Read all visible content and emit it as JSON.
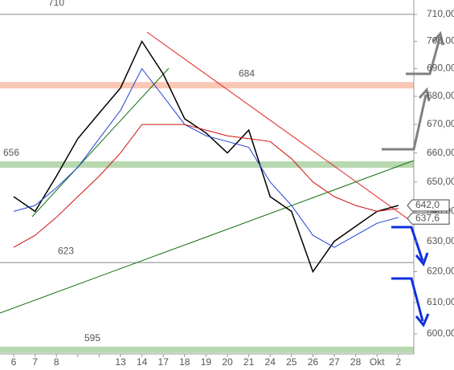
{
  "chart_data": {
    "type": "line",
    "categories": [
      "6",
      "7",
      "8",
      null,
      null,
      "13",
      "14",
      "17",
      "18",
      "19",
      "20",
      "21",
      "24",
      "25",
      "26",
      "27",
      "28",
      "Okt",
      "2"
    ],
    "series": [
      {
        "color": "#000000",
        "values": [
          645,
          640,
          652,
          665,
          674,
          683,
          700,
          688,
          672,
          667,
          660,
          668,
          645,
          640,
          620,
          630,
          635,
          640,
          642
        ]
      },
      {
        "color": "#1f3fd6",
        "values": [
          640,
          642,
          648,
          655,
          665,
          675,
          690,
          680,
          670,
          666,
          664,
          662,
          650,
          642,
          632,
          628,
          632,
          636,
          638
        ]
      },
      {
        "color": "#d01010",
        "values": [
          628,
          632,
          638,
          645,
          652,
          660,
          670,
          670,
          670,
          668,
          666,
          665,
          664,
          658,
          650,
          645,
          642,
          640,
          641
        ]
      }
    ],
    "log_scale": true,
    "ylim": [
      592.7,
      715.4
    ],
    "yticks": [
      {
        "value": 600,
        "label": "600,00"
      },
      {
        "value": 610,
        "label": "610,00"
      },
      {
        "value": 620,
        "label": "620,00"
      },
      {
        "value": 630,
        "label": "630,00"
      },
      {
        "value": 640,
        "label": "640,00"
      },
      {
        "value": 650,
        "label": "650,00"
      },
      {
        "value": 660,
        "label": "660,00"
      },
      {
        "value": 670,
        "label": "670,00"
      },
      {
        "value": 680,
        "label": "680,00"
      },
      {
        "value": 690,
        "label": "690,00"
      },
      {
        "value": 700,
        "label": "700,00"
      },
      {
        "value": 710,
        "label": "710,00"
      }
    ],
    "levels": [
      710,
      684,
      656,
      623,
      595
    ],
    "level_colors": [
      "#888888",
      "#f8c8b4",
      "#b8d8b0",
      "#888888",
      "#b8d8b0"
    ],
    "last_prices": [
      {
        "value": 642.0,
        "label": "642,0"
      },
      {
        "value": 637.6,
        "label": "637,6"
      }
    ]
  }
}
